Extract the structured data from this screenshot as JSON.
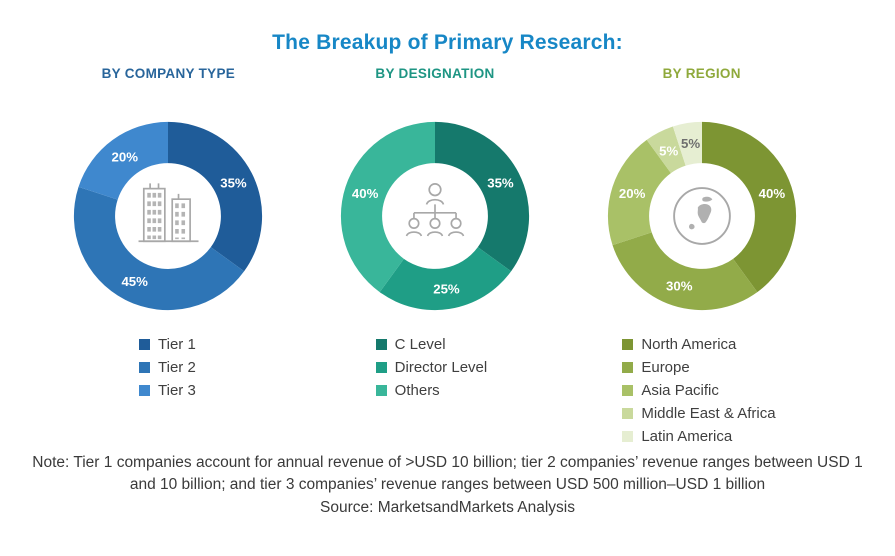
{
  "title": "The Breakup of Primary Research:",
  "title_color": "#1787c6",
  "text_color": "#3a3a3a",
  "chart_data": [
    {
      "type": "pie",
      "variant": "donut",
      "heading": "BY COMPANY TYPE",
      "heading_color": "#28659b",
      "center_icon": "buildings-icon",
      "legend_position": "bottom",
      "segments": [
        {
          "label": "Tier 1",
          "value": 35,
          "color": "#1f5c99",
          "label_color": "#ffffff"
        },
        {
          "label": "Tier 2",
          "value": 45,
          "color": "#2e75b6",
          "label_color": "#ffffff"
        },
        {
          "label": "Tier 3",
          "value": 20,
          "color": "#3f88ce",
          "label_color": "#ffffff"
        }
      ]
    },
    {
      "type": "pie",
      "variant": "donut",
      "heading": "BY DESIGNATION",
      "heading_color": "#1e9583",
      "center_icon": "org-chart-icon",
      "legend_position": "bottom",
      "segments": [
        {
          "label": "C Level",
          "value": 35,
          "color": "#15796c",
          "label_color": "#ffffff"
        },
        {
          "label": "Director Level",
          "value": 25,
          "color": "#1f9e86",
          "label_color": "#ffffff"
        },
        {
          "label": "Others",
          "value": 40,
          "color": "#39b69a",
          "label_color": "#ffffff"
        }
      ]
    },
    {
      "type": "pie",
      "variant": "donut",
      "heading": "BY REGION",
      "heading_color": "#8fa93b",
      "center_icon": "globe-icon",
      "legend_position": "bottom",
      "segments": [
        {
          "label": "North America",
          "value": 40,
          "color": "#7d9533",
          "label_color": "#ffffff"
        },
        {
          "label": "Europe",
          "value": 30,
          "color": "#92ab49",
          "label_color": "#ffffff"
        },
        {
          "label": "Asia Pacific",
          "value": 20,
          "color": "#a9c167",
          "label_color": "#ffffff"
        },
        {
          "label": "Middle East & Africa",
          "value": 5,
          "color": "#c9d99c",
          "label_color": "#ffffff"
        },
        {
          "label": "Latin America",
          "value": 5,
          "color": "#e6eed2",
          "label_color": "#6e6e6e"
        }
      ]
    }
  ],
  "note": "Note: Tier 1 companies account for annual revenue of >USD 10 billion; tier 2 companies’ revenue ranges between USD 1 and 10 billion; and tier 3 companies’ revenue ranges between USD 500 million–USD 1 billion",
  "source": "Source: MarketsandMarkets Analysis"
}
